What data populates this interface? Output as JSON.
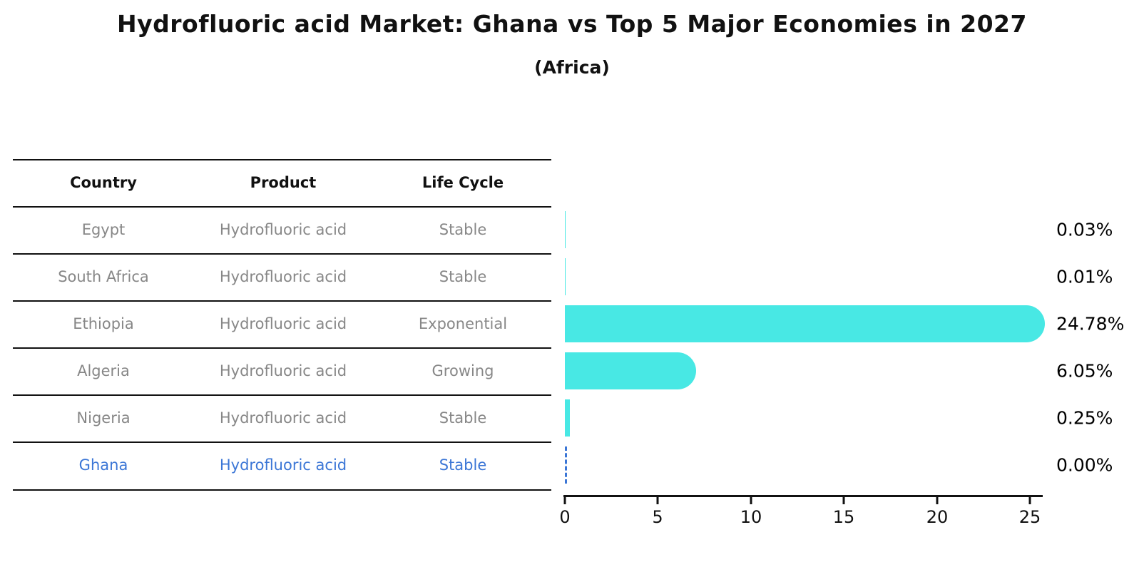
{
  "title": "Hydrofluoric acid Market: Ghana vs Top 5 Major Economies in 2027",
  "subtitle": "(Africa)",
  "table": {
    "headers": [
      "Country",
      "Product",
      "Life Cycle"
    ],
    "rows": [
      {
        "country": "Egypt",
        "product": "Hydrofluoric acid",
        "life_cycle": "Stable",
        "highlighted": false
      },
      {
        "country": "South Africa",
        "product": "Hydrofluoric acid",
        "life_cycle": "Stable",
        "highlighted": false
      },
      {
        "country": "Ethiopia",
        "product": "Hydrofluoric acid",
        "life_cycle": "Exponential",
        "highlighted": false
      },
      {
        "country": "Algeria",
        "product": "Hydrofluoric acid",
        "life_cycle": "Growing",
        "highlighted": false
      },
      {
        "country": "Nigeria",
        "product": "Hydrofluoric acid",
        "life_cycle": "Stable",
        "highlighted": false
      },
      {
        "country": "Ghana",
        "product": "Hydrofluoric acid",
        "life_cycle": "Stable",
        "highlighted": true
      }
    ]
  },
  "chart_data": {
    "type": "bar",
    "orientation": "horizontal",
    "title": "Hydrofluoric acid Market: Ghana vs Top 5 Major Economies in 2027",
    "subtitle": "(Africa)",
    "categories": [
      "Egypt",
      "South Africa",
      "Ethiopia",
      "Algeria",
      "Nigeria",
      "Ghana"
    ],
    "values": [
      0.03,
      0.01,
      24.78,
      6.05,
      0.25,
      0.0
    ],
    "value_labels": [
      "0.03%",
      "0.01%",
      "24.78%",
      "6.05%",
      "0.25%",
      "0.00%"
    ],
    "x_ticks": [
      "0",
      "5",
      "10",
      "15",
      "20",
      "25"
    ],
    "xlim": [
      0,
      25.7
    ],
    "xlabel": "",
    "ylabel": "",
    "grid": false,
    "legend": "none",
    "bar_color": "#48E8E4",
    "highlight_color": "#3B76D6",
    "zero_bar_style": "dashed"
  }
}
